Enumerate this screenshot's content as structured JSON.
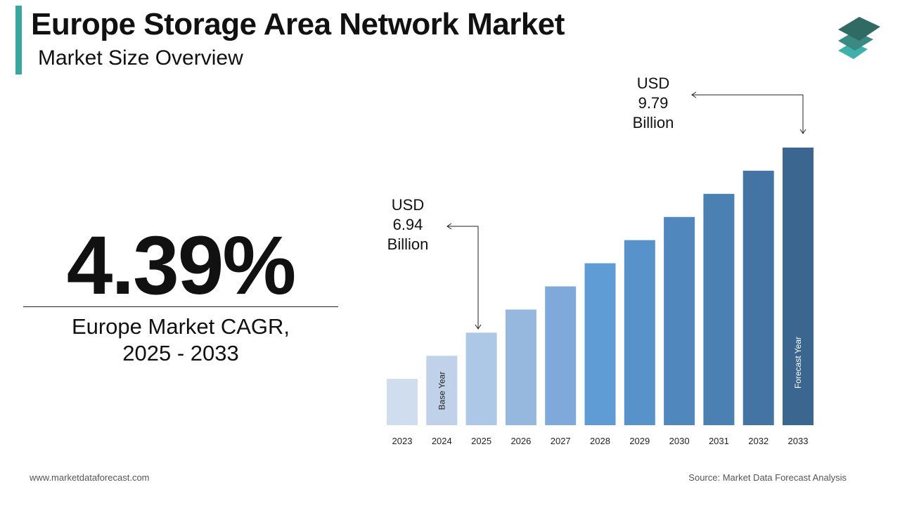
{
  "header": {
    "title": "Europe Storage Area Network Market",
    "subtitle": "Market Size Overview"
  },
  "logo": {
    "icon": "stacked-layers-logo",
    "colors": [
      "#2f6b62",
      "#3a8a83",
      "#3fb0aa"
    ]
  },
  "cagr": {
    "value": "4.39%",
    "label_line1": "Europe Market CAGR,",
    "label_line2": "2025 - 2033"
  },
  "callouts": {
    "start": {
      "line1": "USD",
      "line2": "6.94",
      "line3": "Billion"
    },
    "end": {
      "line1": "USD",
      "line2": "9.79",
      "line3": "Billion"
    }
  },
  "chart_data": {
    "type": "bar",
    "title": "Europe Storage Area Network Market",
    "categories": [
      "2023",
      "2024",
      "2025",
      "2026",
      "2027",
      "2028",
      "2029",
      "2030",
      "2031",
      "2032",
      "2033"
    ],
    "values": [
      2,
      3,
      4,
      5,
      6,
      7,
      8,
      9,
      10,
      11,
      12
    ],
    "value_units": "relative (illustrative)",
    "annotated_values": {
      "2025": "USD 6.94 Billion",
      "2033": "USD 9.79 Billion"
    },
    "bar_labels": {
      "2024": "Base Year",
      "2033": "Forecast Year"
    },
    "colors": [
      "#d0ddef",
      "#c0d2ea",
      "#adc7e6",
      "#97b8de",
      "#7ea9da",
      "#5f9bd5",
      "#5892cb",
      "#5088bd",
      "#4a80b2",
      "#4374a3",
      "#3b6690"
    ],
    "ylim": [
      0,
      12
    ],
    "grid": false,
    "xlabel": "",
    "ylabel": ""
  },
  "footer": {
    "website": "www.marketdataforecast.com",
    "source": "Source: Market Data Forecast Analysis"
  }
}
